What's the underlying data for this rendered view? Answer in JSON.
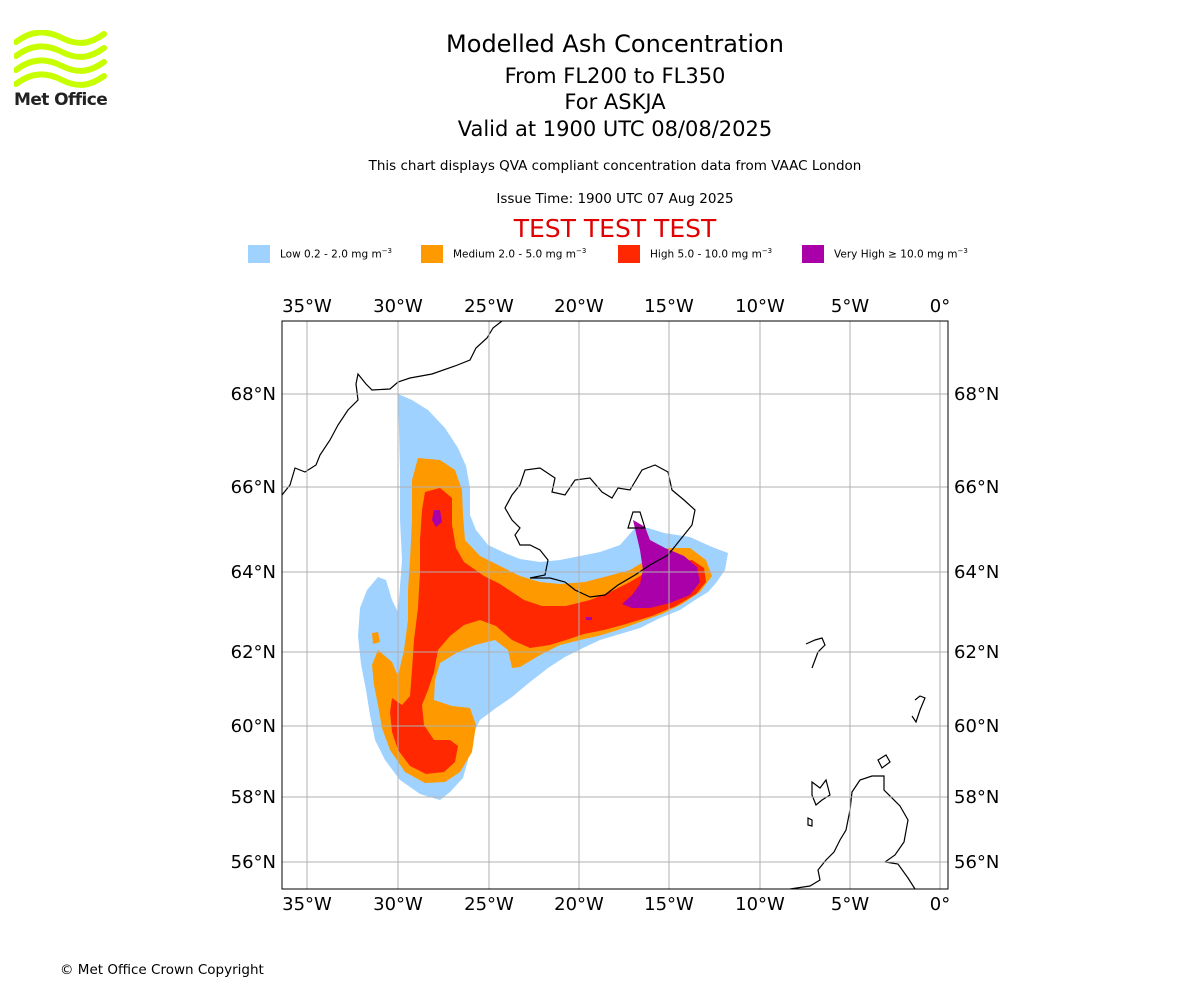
{
  "logo": {
    "text": "Met Office",
    "wave_color": "#c8ff00"
  },
  "title": {
    "line1": "Modelled Ash Concentration",
    "line2": "From FL200 to FL350",
    "line3": "For ASKJA",
    "line4": "Valid at 1900 UTC 08/08/2025"
  },
  "subtitle": "This chart displays QVA compliant concentration data from VAAC London",
  "issue_time": "Issue Time: 1900 UTC 07 Aug 2025",
  "test_banner": "TEST TEST TEST",
  "legend": [
    {
      "label_prefix": "Low 0.2 - 2.0 mg m",
      "exp": "−3",
      "color": "#a0d2ff"
    },
    {
      "label_prefix": "Medium 2.0 - 5.0 mg m",
      "exp": "−3",
      "color": "#ff9900"
    },
    {
      "label_prefix": "High 5.0 - 10.0 mg m",
      "exp": "−3",
      "color": "#ff2800"
    },
    {
      "label_prefix": "Very High  ≥  10.0 mg m",
      "exp": "−3",
      "color": "#aa00aa"
    }
  ],
  "map": {
    "lon_labels": [
      "35°W",
      "30°W",
      "25°W",
      "20°W",
      "15°W",
      "10°W",
      "5°W",
      "0°"
    ],
    "lat_labels": [
      "68°N",
      "66°N",
      "64°N",
      "62°N",
      "60°N",
      "58°N",
      "56°N"
    ],
    "volcano_marker": "triangle"
  },
  "copyright": "© Met Office Crown Copyright"
}
